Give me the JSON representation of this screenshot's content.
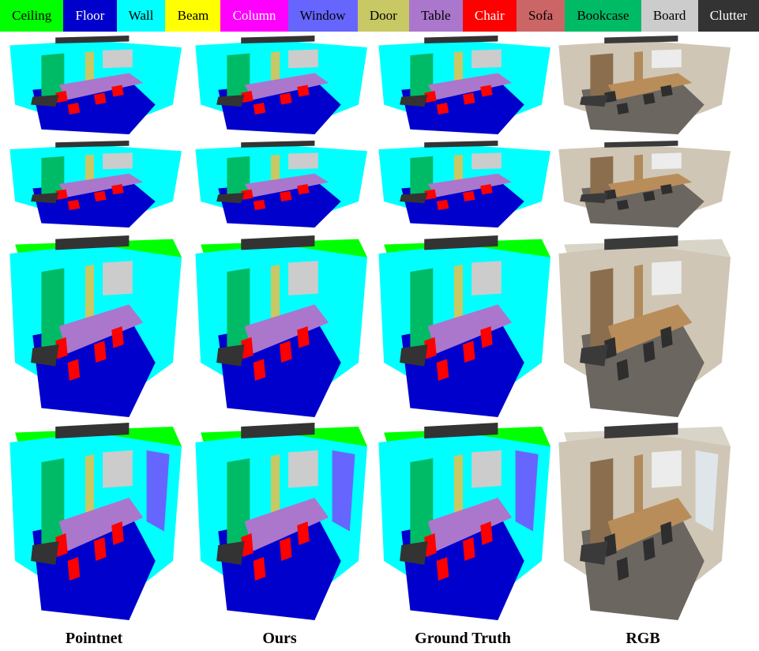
{
  "legend": [
    {
      "label": "Ceiling",
      "color": "#00ff00"
    },
    {
      "label": "Floor",
      "color": "#0000cc"
    },
    {
      "label": "Wall",
      "color": "#00ffff"
    },
    {
      "label": "Beam",
      "color": "#ffff00"
    },
    {
      "label": "Column",
      "color": "#ff00ff"
    },
    {
      "label": "Window",
      "color": "#6666ff"
    },
    {
      "label": "Door",
      "color": "#c8c864"
    },
    {
      "label": "Table",
      "color": "#aa77cc"
    },
    {
      "label": "Chair",
      "color": "#ff0000"
    },
    {
      "label": "Sofa",
      "color": "#cc6666"
    },
    {
      "label": "Bookcase",
      "color": "#00bb66"
    },
    {
      "label": "Board",
      "color": "#cccccc"
    },
    {
      "label": "Clutter",
      "color": "#333333"
    }
  ],
  "columns": [
    "Pointnet",
    "Ours",
    "Ground Truth",
    "RGB"
  ]
}
